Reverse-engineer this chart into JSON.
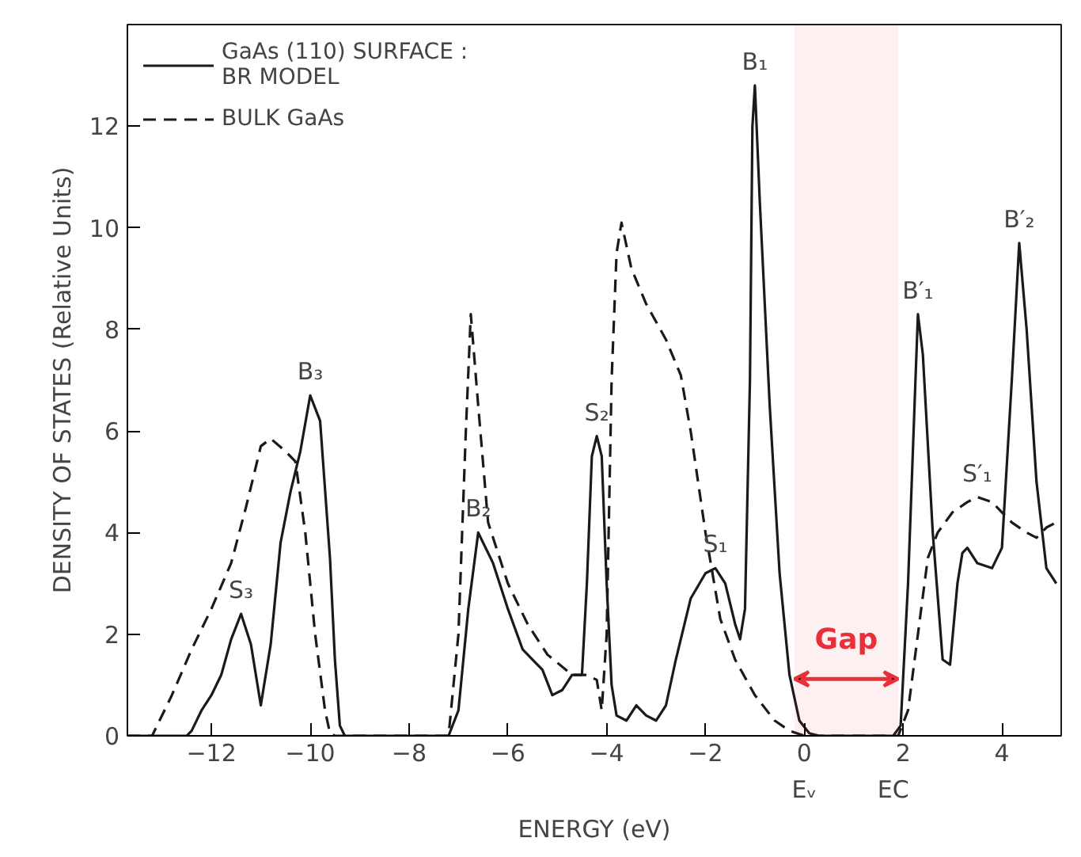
{
  "chart_data": {
    "type": "line",
    "xlabel": "ENERGY (eV)",
    "ylabel": "DENSITY OF STATES (Relative Units)",
    "xlim": [
      -13.7,
      5.2
    ],
    "ylim": [
      0,
      14
    ],
    "xticks": [
      -12,
      -10,
      -8,
      -6,
      -4,
      -2,
      0,
      2,
      4
    ],
    "yticks": [
      0,
      2,
      4,
      6,
      8,
      10,
      12
    ],
    "grid": false,
    "legend": "top left",
    "marker": "none",
    "series": [
      {
        "name": "GaAs (110) SURFACE :\nBR MODEL",
        "color": "#1a1a1a",
        "line_style": "solid",
        "x": [
          -13.7,
          -12.5,
          -12.4,
          -12.2,
          -12.0,
          -11.8,
          -11.6,
          -11.4,
          -11.2,
          -11.0,
          -10.8,
          -10.6,
          -10.4,
          -10.2,
          -10.0,
          -9.8,
          -9.6,
          -9.5,
          -9.4,
          -9.3,
          -7.2,
          -7.0,
          -6.8,
          -6.6,
          -6.3,
          -6.0,
          -5.7,
          -5.5,
          -5.3,
          -5.1,
          -4.9,
          -4.7,
          -4.5,
          -4.4,
          -4.3,
          -4.2,
          -4.1,
          -4.0,
          -3.9,
          -3.8,
          -3.6,
          -3.4,
          -3.2,
          -3.0,
          -2.8,
          -2.6,
          -2.3,
          -2.0,
          -1.8,
          -1.6,
          -1.4,
          -1.3,
          -1.2,
          -1.1,
          -1.05,
          -1.0,
          -0.9,
          -0.7,
          -0.5,
          -0.3,
          -0.1,
          0.1,
          0.3,
          1.8,
          1.95,
          2.1,
          2.25,
          2.3,
          2.4,
          2.6,
          2.8,
          2.95,
          3.1,
          3.2,
          3.3,
          3.5,
          3.8,
          4.0,
          4.2,
          4.35,
          4.5,
          4.7,
          4.9,
          5.1
        ],
        "values": [
          0,
          0,
          0.1,
          0.5,
          0.8,
          1.2,
          1.9,
          2.4,
          1.8,
          0.6,
          1.8,
          3.8,
          4.8,
          5.6,
          6.7,
          6.2,
          3.5,
          1.5,
          0.2,
          0,
          0,
          0.5,
          2.5,
          4.0,
          3.4,
          2.5,
          1.7,
          1.5,
          1.3,
          0.8,
          0.9,
          1.2,
          1.2,
          3.0,
          5.5,
          5.9,
          5.5,
          3.0,
          1.0,
          0.4,
          0.3,
          0.6,
          0.4,
          0.3,
          0.6,
          1.5,
          2.7,
          3.2,
          3.3,
          3.0,
          2.2,
          1.9,
          2.5,
          7.0,
          12.0,
          12.8,
          10.5,
          6.5,
          3.2,
          1.2,
          0.3,
          0.05,
          0,
          0,
          0.2,
          3.0,
          7.0,
          8.3,
          7.5,
          4.0,
          1.5,
          1.4,
          3.0,
          3.6,
          3.7,
          3.4,
          3.3,
          3.7,
          7.0,
          9.7,
          8.0,
          5.0,
          3.3,
          3.0
        ]
      },
      {
        "name": "BULK GaAs",
        "color": "#1a1a1a",
        "line_style": "dashed",
        "x": [
          -13.7,
          -13.2,
          -12.8,
          -12.4,
          -12.0,
          -11.6,
          -11.3,
          -11.0,
          -10.8,
          -10.5,
          -10.3,
          -10.1,
          -9.9,
          -9.7,
          -9.6,
          -9.5,
          -7.2,
          -7.0,
          -6.85,
          -6.75,
          -6.6,
          -6.4,
          -6.0,
          -5.6,
          -5.2,
          -4.7,
          -4.4,
          -4.2,
          -4.1,
          -4.0,
          -3.9,
          -3.8,
          -3.7,
          -3.5,
          -3.2,
          -2.8,
          -2.5,
          -2.3,
          -2.0,
          -1.7,
          -1.4,
          -1.0,
          -0.6,
          -0.3,
          0.0,
          1.9,
          2.1,
          2.3,
          2.5,
          2.7,
          3.0,
          3.3,
          3.5,
          3.8,
          4.0,
          4.2,
          4.5,
          4.7,
          4.9,
          5.1
        ],
        "values": [
          0,
          0,
          0.8,
          1.7,
          2.5,
          3.4,
          4.5,
          5.7,
          5.85,
          5.6,
          5.4,
          4.0,
          2.0,
          0.5,
          0.05,
          0,
          0,
          2.0,
          6.0,
          8.3,
          6.5,
          4.2,
          3.0,
          2.2,
          1.6,
          1.2,
          1.2,
          1.1,
          0.5,
          2.0,
          7.0,
          9.5,
          10.1,
          9.2,
          8.5,
          7.8,
          7.1,
          6.0,
          4.0,
          2.3,
          1.5,
          0.8,
          0.3,
          0.1,
          0,
          0,
          0.5,
          2.0,
          3.5,
          4.0,
          4.4,
          4.6,
          4.7,
          4.6,
          4.4,
          4.2,
          4.0,
          3.9,
          4.1,
          4.2
        ]
      }
    ],
    "bands": [
      {
        "axis": "x",
        "from": -0.2,
        "to": 1.9,
        "label": "Gap",
        "color": "#e8303a"
      }
    ],
    "annotations": [
      {
        "text": "S₃",
        "x": -11.4,
        "y": 2.4
      },
      {
        "text": "B₃",
        "x": -10.0,
        "y": 6.7
      },
      {
        "text": "B₂",
        "x": -6.6,
        "y": 4.0
      },
      {
        "text": "S₂",
        "x": -4.2,
        "y": 5.9
      },
      {
        "text": "S₁",
        "x": -1.8,
        "y": 3.3
      },
      {
        "text": "B₁",
        "x": -1.0,
        "y": 12.8
      },
      {
        "text": "B′₁",
        "x": 2.3,
        "y": 8.3
      },
      {
        "text": "B′₂",
        "x": 4.35,
        "y": 9.7
      },
      {
        "text": "S′₁",
        "x": 3.5,
        "y": 4.7
      },
      {
        "text": "Eᵥ",
        "x": 0,
        "y": 0
      },
      {
        "text": "EC",
        "x": 1.8,
        "y": 0
      }
    ]
  }
}
